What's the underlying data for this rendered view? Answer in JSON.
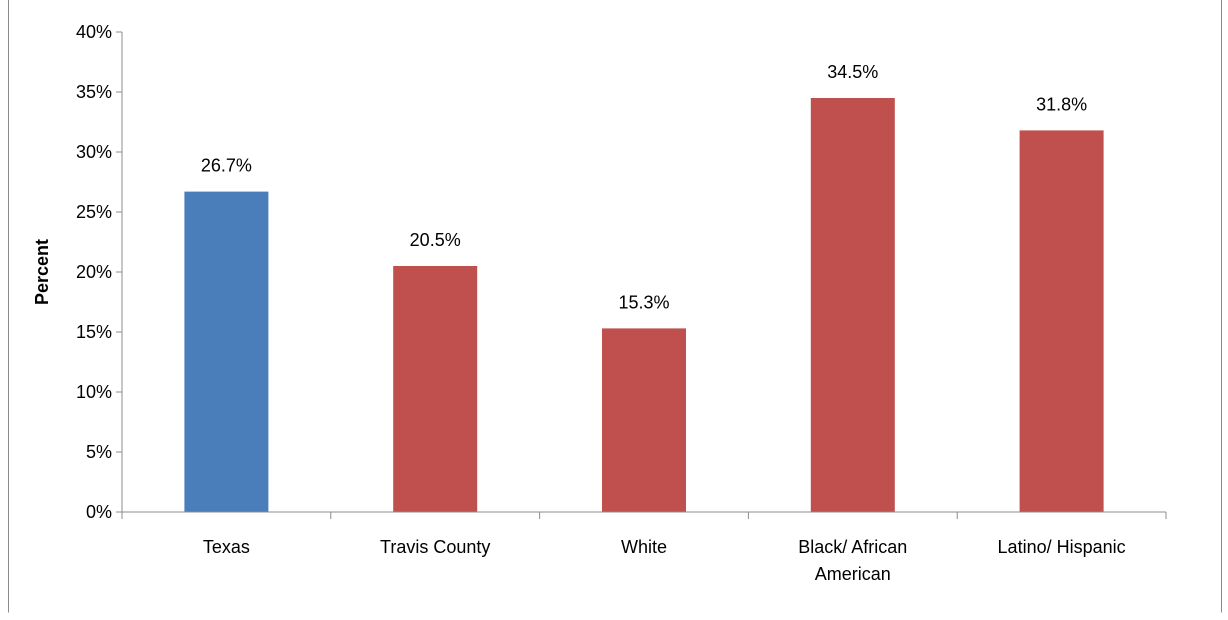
{
  "chart_data": {
    "type": "bar",
    "title": "",
    "xlabel": "",
    "ylabel": "Percent",
    "ylim": [
      0,
      40
    ],
    "y_tick_step": 5,
    "y_tick_labels": [
      "0%",
      "5%",
      "10%",
      "15%",
      "20%",
      "25%",
      "30%",
      "35%",
      "40%"
    ],
    "grid": false,
    "legend": "none",
    "categories": [
      [
        "Texas"
      ],
      [
        "Travis County"
      ],
      [
        "White"
      ],
      [
        "Black/ African",
        "American"
      ],
      [
        "Latino/ Hispanic"
      ]
    ],
    "values": [
      26.7,
      20.5,
      15.3,
      34.5,
      31.8
    ],
    "data_labels": [
      "26.7%",
      "20.5%",
      "15.3%",
      "34.5%",
      "31.8%"
    ],
    "colors": [
      "#4a7ebb",
      "#c0504d",
      "#c0504d",
      "#c0504d",
      "#c0504d"
    ]
  }
}
